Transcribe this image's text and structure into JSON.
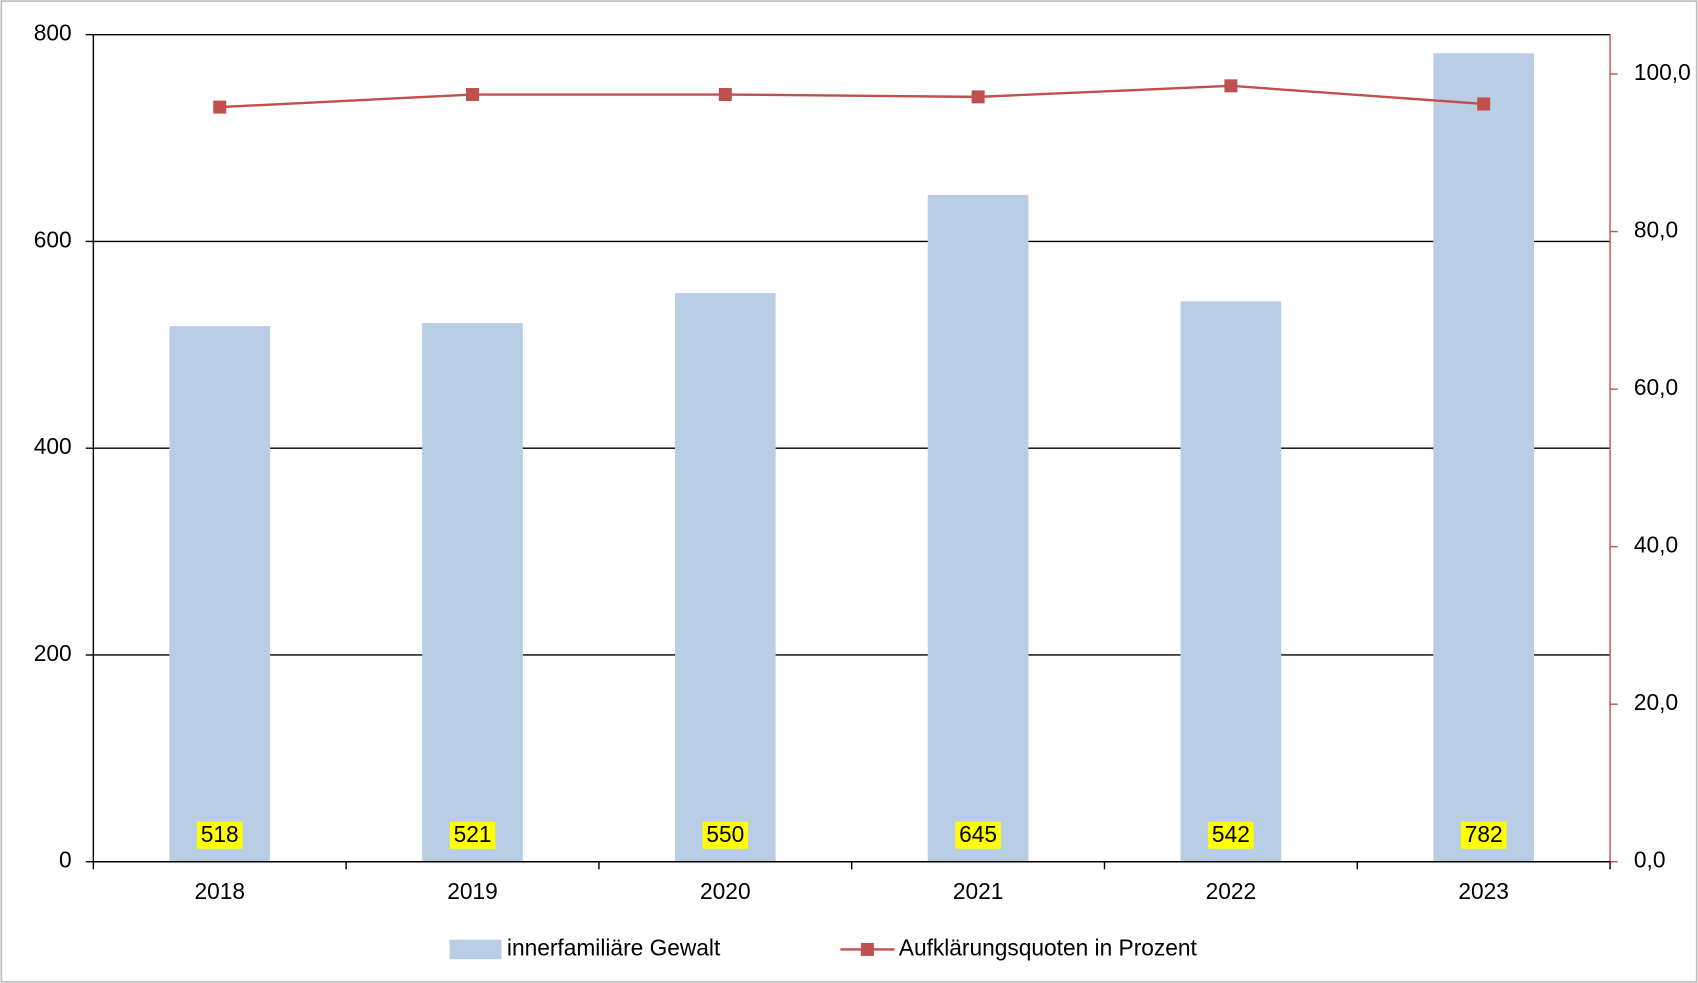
{
  "chart_data": {
    "type": "bar_line",
    "categories": [
      "2018",
      "2019",
      "2020",
      "2021",
      "2022",
      "2023"
    ],
    "series": [
      {
        "name": "innerfamiliäre Gewalt",
        "type": "bar",
        "color": "#b9cde5",
        "values": [
          518,
          521,
          550,
          645,
          542,
          782
        ]
      },
      {
        "name": "Aufklärungsquoten in Prozent",
        "type": "line",
        "axis": "y2",
        "color": "#c0504d",
        "values": [
          95.8,
          97.4,
          97.4,
          97.1,
          98.5,
          96.2
        ]
      }
    ],
    "ylim": [
      0,
      800
    ],
    "yticks": [
      0,
      200,
      400,
      600,
      800
    ],
    "y2lim": [
      0,
      105
    ],
    "y2ticks": [
      {
        "value": 0,
        "label": "0,0"
      },
      {
        "value": 20,
        "label": "20,0"
      },
      {
        "value": 40,
        "label": "40,0"
      },
      {
        "value": 60,
        "label": "60,0"
      },
      {
        "value": 80,
        "label": "80,0"
      },
      {
        "value": 100,
        "label": "100,0"
      }
    ],
    "grid": true,
    "data_labels": true,
    "data_label_background": "#ffff00",
    "legend": "bottom"
  }
}
